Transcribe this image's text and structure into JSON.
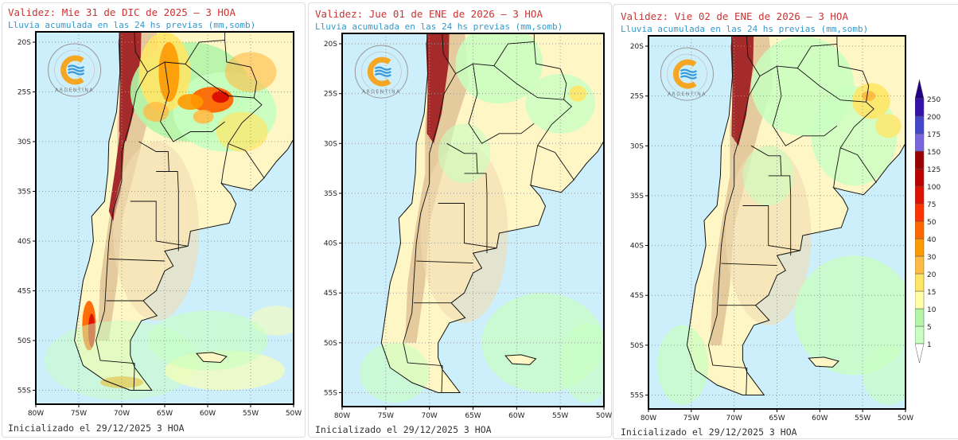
{
  "panels": [
    {
      "title": "Validez: Mie 31 de DIC de 2025 — 3 HOA",
      "subtitle": "Lluvia acumulada en las 24 hs previas (mm,somb)",
      "footer": "Inicializado el 29/12/2025 3 HOA"
    },
    {
      "title": "Validez: Jue 01 de ENE de 2026 — 3 HOA",
      "subtitle": "Lluvia acumulada en las 24 hs previas (mm,somb)",
      "footer": "Inicializado el 29/12/2025 3 HOA"
    },
    {
      "title": "Validez: Vie 02 de ENE de 2026 — 3 HOA",
      "subtitle": "Lluvia acumulada en las 24 hs previas (mm,somb)",
      "footer": "Inicializado el 29/12/2025 3 HOA"
    }
  ],
  "lat_ticks": [
    "20S",
    "25S",
    "30S",
    "35S",
    "40S",
    "45S",
    "50S",
    "55S"
  ],
  "lon_ticks": [
    "80W",
    "75W",
    "70W",
    "65W",
    "60W",
    "55W",
    "50W"
  ],
  "logo": {
    "ring_text": "SERVICIO METEOROLÓGICO NACIONAL",
    "country": "ARGENTINA"
  },
  "colorbar": {
    "levels": [
      "1",
      "5",
      "10",
      "15",
      "20",
      "30",
      "40",
      "50",
      "75",
      "100",
      "125",
      "150",
      "175",
      "200",
      "250"
    ],
    "colors": [
      "#c8ffc0",
      "#b4f5a8",
      "#ffffaa",
      "#ffe566",
      "#ffbb44",
      "#ff9900",
      "#ff6600",
      "#ff3300",
      "#dd1100",
      "#bb0000",
      "#990000",
      "#7766dd",
      "#4444cc",
      "#3311aa"
    ],
    "over_color": "#220088",
    "under_color": "#ffffff"
  },
  "colors": {
    "ocean": "#cdeffc",
    "land": "#fff6c6",
    "title": "#cc3333",
    "subtitle": "#3399cc"
  }
}
